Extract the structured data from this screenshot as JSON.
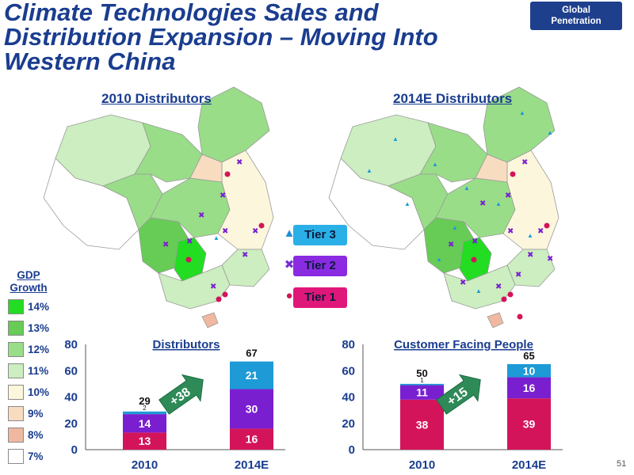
{
  "header": {
    "title": "Climate Technologies Sales and Distribution Expansion – Moving Into Western China",
    "badge_line1": "Global",
    "badge_line2": "Penetration"
  },
  "maps": {
    "left_title": "2010 Distributors",
    "right_title": "2014E Distributors"
  },
  "tier_legend": [
    {
      "label": "Tier 3",
      "symbol": "▲",
      "symbol_color": "#1e8fd6",
      "box_color": "#2ab0e6"
    },
    {
      "label": "Tier 2",
      "symbol": "✖",
      "symbol_color": "#7a2bd6",
      "box_color": "#8a2be2"
    },
    {
      "label": "Tier 1",
      "symbol": "●",
      "symbol_color": "#d4145a",
      "box_color": "#e0177a"
    }
  ],
  "gdp_legend": {
    "title_line1": "GDP",
    "title_line2": "Growth",
    "items": [
      {
        "label": "14%",
        "color": "#22dd22"
      },
      {
        "label": "13%",
        "color": "#66cc55"
      },
      {
        "label": "12%",
        "color": "#99dd88"
      },
      {
        "label": "11%",
        "color": "#cceec0"
      },
      {
        "label": "10%",
        "color": "#fcf6dc"
      },
      {
        "label": "9%",
        "color": "#f8dcc0"
      },
      {
        "label": "8%",
        "color": "#f0b8a0"
      },
      {
        "label": "7%",
        "color": "#ffffff"
      }
    ]
  },
  "colors": {
    "tier1": "#d4145a",
    "tier2": "#7a1fd0",
    "tier3": "#1e9ad6",
    "arrow": "#2e8b57",
    "title": "#1a3d8f"
  },
  "chart_data": [
    {
      "type": "bar",
      "title": "Distributors",
      "categories": [
        "2010",
        "2014E"
      ],
      "series": [
        {
          "name": "Tier 1",
          "values": [
            13,
            16
          ]
        },
        {
          "name": "Tier 2",
          "values": [
            14,
            30
          ]
        },
        {
          "name": "Tier 3",
          "values": [
            2,
            21
          ]
        }
      ],
      "totals": [
        29,
        67
      ],
      "ylim": [
        0,
        80
      ],
      "yticks": [
        "0",
        "20",
        "40",
        "60",
        "80"
      ],
      "growth_label": "+38"
    },
    {
      "type": "bar",
      "title": "Customer Facing People",
      "categories": [
        "2010",
        "2014E"
      ],
      "series": [
        {
          "name": "Tier 1",
          "values": [
            38,
            39
          ]
        },
        {
          "name": "Tier 2",
          "values": [
            11,
            16
          ]
        },
        {
          "name": "Tier 3",
          "values": [
            1,
            10
          ]
        }
      ],
      "totals": [
        50,
        65
      ],
      "ylim": [
        0,
        80
      ],
      "yticks": [
        "0",
        "20",
        "40",
        "60",
        "80"
      ],
      "growth_label": "+15"
    }
  ],
  "page_number": "51"
}
